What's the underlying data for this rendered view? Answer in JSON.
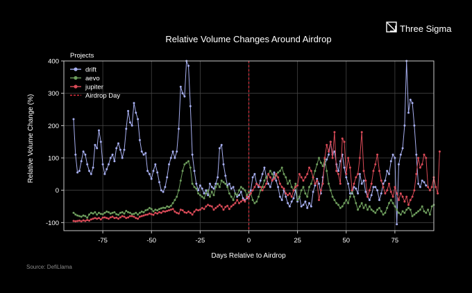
{
  "brand": {
    "name": "Three Sigma",
    "icon": "three-sigma-logo-icon"
  },
  "source": "Source: DefiLlama",
  "colors": {
    "background": "#000000",
    "drift": "#a7aff0",
    "aevo": "#6e9e5d",
    "jupiter": "#d94a57",
    "airdrop": "#e0323f",
    "grid": "#444444"
  },
  "chart_data": {
    "type": "line",
    "title": "Relative Volume Changes Around Airdrop",
    "xlabel": "Days Relative to Airdrop",
    "ylabel": "Relative Volume Change (%)",
    "xlim": [
      -95,
      95
    ],
    "ylim": [
      -125,
      400
    ],
    "xticks": [
      -75,
      -50,
      -25,
      0,
      25,
      50,
      75
    ],
    "yticks": [
      -100,
      0,
      100,
      200,
      300,
      400
    ],
    "grid": true,
    "legend": {
      "title": "Projects",
      "position": "top-left"
    },
    "vline": {
      "name": "Airdrop Day",
      "x": 0,
      "style": "dashed"
    },
    "series": [
      {
        "name": "drift",
        "x_start": -90,
        "x_step": 1,
        "values": [
          220,
          110,
          55,
          60,
          90,
          120,
          110,
          80,
          60,
          50,
          70,
          140,
          130,
          185,
          150,
          80,
          50,
          65,
          80,
          100,
          110,
          90,
          130,
          145,
          125,
          100,
          125,
          190,
          245,
          210,
          200,
          270,
          240,
          220,
          155,
          120,
          110,
          115,
          60,
          50,
          35,
          60,
          80,
          55,
          25,
          0,
          -5,
          10,
          40,
          80,
          100,
          120,
          100,
          120,
          190,
          320,
          300,
          290,
          400,
          385,
          260,
          110,
          60,
          20,
          0,
          15,
          5,
          -10,
          0,
          -15,
          20,
          10,
          5,
          20,
          40,
          130,
          140,
          80,
          45,
          15,
          20,
          5,
          10,
          -10,
          -20,
          -15,
          -5,
          -25,
          -30,
          -25,
          -20,
          0,
          40,
          50,
          20,
          10,
          30,
          50,
          70,
          40,
          20,
          10,
          30,
          55,
          30,
          10,
          -20,
          -30,
          0,
          -20,
          -40,
          -50,
          -35,
          -25,
          0,
          -35,
          -20,
          -50,
          -45,
          -35,
          -55,
          -40,
          -50,
          -5,
          15,
          35,
          20,
          -10,
          40,
          80,
          95,
          110,
          150,
          110,
          120,
          80,
          60,
          90,
          110,
          70,
          40,
          20,
          -10,
          -10,
          10,
          5,
          -10,
          50,
          20,
          30,
          -5,
          -20,
          -30,
          -15,
          10,
          10,
          0,
          -30,
          -10,
          20,
          30,
          60,
          50,
          90,
          110,
          100,
          -105,
          80,
          110,
          130,
          200,
          400,
          240,
          280,
          270,
          200,
          110,
          20,
          10,
          30,
          25,
          15
        ]
      },
      {
        "name": "aevo",
        "x_start": -90,
        "x_step": 1,
        "values": [
          -70,
          -75,
          -78,
          -80,
          -82,
          -78,
          -80,
          -85,
          -75,
          -70,
          -72,
          -68,
          -75,
          -70,
          -73,
          -74,
          -70,
          -66,
          -68,
          -72,
          -70,
          -68,
          -74,
          -76,
          -70,
          -68,
          -72,
          -64,
          -68,
          -70,
          -74,
          -73,
          -70,
          -75,
          -70,
          -66,
          -68,
          -62,
          -60,
          -55,
          -58,
          -65,
          -60,
          -62,
          -58,
          -56,
          -54,
          -55,
          -50,
          -52,
          -48,
          -40,
          -30,
          -20,
          0,
          30,
          60,
          80,
          85,
          90,
          70,
          20,
          10,
          5,
          -10,
          -15,
          -20,
          -25,
          -10,
          0,
          -20,
          -5,
          -15,
          10,
          20,
          10,
          30,
          25,
          20,
          10,
          -10,
          -20,
          -30,
          -10,
          -15,
          0,
          10,
          5,
          0,
          -15,
          -5,
          -10,
          -30,
          -40,
          -35,
          -20,
          0,
          10,
          30,
          40,
          50,
          60,
          50,
          40,
          45,
          55,
          60,
          70,
          50,
          40,
          20,
          30,
          10,
          0,
          20,
          -30,
          -20,
          0,
          10,
          -10,
          -20,
          10,
          20,
          40,
          60,
          80,
          100,
          85,
          75,
          95,
          60,
          20,
          0,
          -20,
          -30,
          -40,
          -45,
          -55,
          -50,
          -40,
          -30,
          -40,
          -20,
          0,
          -20,
          -40,
          -60,
          -50,
          -40,
          -55,
          -45,
          -60,
          -50,
          -60,
          -65,
          -70,
          -60,
          -55,
          -65,
          -75,
          -70,
          -55,
          -40,
          -30,
          -40,
          -50,
          -60,
          -70,
          -75,
          -65,
          -70,
          -60,
          -55,
          -60,
          -80,
          -75,
          -70,
          -65,
          -60,
          -50,
          -65,
          -70,
          -60,
          -75,
          -50,
          -45
        ]
      },
      {
        "name": "jupiter",
        "x_start": -90,
        "x_step": 1,
        "values": [
          -95,
          -96,
          -95,
          -94,
          -96,
          -93,
          -95,
          -92,
          -94,
          -90,
          -88,
          -86,
          -88,
          -86,
          -90,
          -85,
          -84,
          -86,
          -88,
          -84,
          -82,
          -86,
          -85,
          -88,
          -84,
          -80,
          -82,
          -86,
          -84,
          -80,
          -80,
          -82,
          -86,
          -88,
          -82,
          -80,
          -78,
          -76,
          -75,
          -72,
          -74,
          -76,
          -70,
          -72,
          -68,
          -70,
          -65,
          -66,
          -64,
          -62,
          -60,
          -58,
          -66,
          -70,
          -72,
          -60,
          -62,
          -68,
          -70,
          -66,
          -70,
          -75,
          -66,
          -60,
          -62,
          -60,
          -55,
          -58,
          -50,
          -45,
          -48,
          -50,
          -60,
          -55,
          -50,
          -45,
          -50,
          -60,
          -52,
          -48,
          -58,
          -50,
          -45,
          -40,
          -30,
          -40,
          -35,
          -30,
          -35,
          -20,
          -25,
          -10,
          0,
          10,
          20,
          15,
          10,
          0,
          10,
          20,
          50,
          40,
          30,
          35,
          50,
          40,
          20,
          10,
          5,
          -10,
          -15,
          -10,
          -20,
          0,
          10,
          15,
          50,
          40,
          30,
          40,
          50,
          70,
          60,
          40,
          20,
          30,
          -30,
          0,
          20,
          100,
          140,
          120,
          150,
          100,
          180,
          60,
          50,
          20,
          160,
          150,
          50,
          100,
          70,
          0,
          20,
          40,
          50,
          100,
          180,
          60,
          30,
          -20,
          0,
          20,
          60,
          80,
          110,
          60,
          30,
          10,
          -10,
          0,
          20,
          -5,
          -20,
          10,
          -10,
          -30,
          -10,
          -20,
          -35,
          -20,
          -45,
          -30,
          -20,
          0,
          50,
          100,
          70,
          80,
          110,
          100,
          10,
          0,
          10,
          40,
          10,
          -10,
          120
        ]
      }
    ]
  }
}
